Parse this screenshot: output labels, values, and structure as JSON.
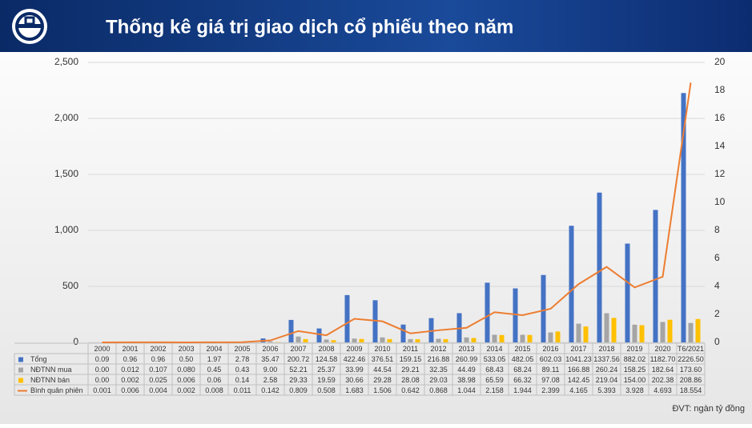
{
  "header": {
    "title": "Thống kê giá trị giao dịch cổ phiếu theo năm"
  },
  "chart_data": {
    "type": "bar-line-table",
    "categories": [
      "2000",
      "2001",
      "2002",
      "2003",
      "2004",
      "2005",
      "2006",
      "2007",
      "2008",
      "2009",
      "2010",
      "2011",
      "2012",
      "2013",
      "2014",
      "2015",
      "2016",
      "2017",
      "2018",
      "2019",
      "2020",
      "T6/2021"
    ],
    "series": [
      {
        "name": "Tổng",
        "color": "#4472c4",
        "kind": "bar",
        "values": [
          0.09,
          0.96,
          0.96,
          0.5,
          1.97,
          2.78,
          35.47,
          200.72,
          124.58,
          422.46,
          376.51,
          159.15,
          216.88,
          260.99,
          533.05,
          482.05,
          602.03,
          1041.23,
          1337.56,
          882.02,
          1182.7,
          2226.5
        ],
        "value_labels": [
          "0.09",
          "0.96",
          "0.96",
          "0.50",
          "1.97",
          "2.78",
          "35.47",
          "200.72",
          "124.58",
          "422.46",
          "376.51",
          "159.15",
          "216.88",
          "260.99",
          "533.05",
          "482.05",
          "602.03",
          "1041.23",
          "1337.56",
          "882.02",
          "1182.70",
          "2226.50"
        ]
      },
      {
        "name": "NĐTNN mua",
        "color": "#a5a5a5",
        "kind": "bar",
        "values": [
          0,
          0.012,
          0.107,
          0.08,
          0.45,
          0.43,
          9,
          52.21,
          25.37,
          33.99,
          44.54,
          29.21,
          32.35,
          44.49,
          68.43,
          68.24,
          89.11,
          166.88,
          260.24,
          158.25,
          182.64,
          173.6
        ],
        "value_labels": [
          "0.00",
          "0.012",
          "0.107",
          "0.080",
          "0.45",
          "0.43",
          "9.00",
          "52.21",
          "25.37",
          "33.99",
          "44.54",
          "29.21",
          "32.35",
          "44.49",
          "68.43",
          "68.24",
          "89.11",
          "166.88",
          "260.24",
          "158.25",
          "182.64",
          "173.60"
        ]
      },
      {
        "name": "NĐTNN bán",
        "color": "#ffc000",
        "kind": "bar",
        "values": [
          0,
          0.002,
          0.025,
          0.006,
          0.06,
          0.14,
          2.58,
          29.33,
          19.59,
          30.66,
          29.28,
          28.08,
          29.03,
          38.98,
          65.59,
          66.32,
          97.08,
          142.45,
          219.04,
          154,
          202.38,
          208.86
        ],
        "value_labels": [
          "0.00",
          "0.002",
          "0.025",
          "0.006",
          "0.06",
          "0.14",
          "2.58",
          "29.33",
          "19.59",
          "30.66",
          "29.28",
          "28.08",
          "29.03",
          "38.98",
          "65.59",
          "66.32",
          "97.08",
          "142.45",
          "219.04",
          "154.00",
          "202.38",
          "208.86"
        ]
      },
      {
        "name": "Bình quân phiên",
        "color": "#ed7d31",
        "kind": "line",
        "axis": "y2",
        "values": [
          0.001,
          0.006,
          0.004,
          0.002,
          0.008,
          0.011,
          0.142,
          0.809,
          0.508,
          1.683,
          1.506,
          0.642,
          0.868,
          1.044,
          2.158,
          1.944,
          2.399,
          4.165,
          5.393,
          3.928,
          4.693,
          18.554
        ],
        "value_labels": [
          "0.001",
          "0.006",
          "0.004",
          "0.002",
          "0.008",
          "0.011",
          "0.142",
          "0.809",
          "0.508",
          "1.683",
          "1.506",
          "0.642",
          "0.868",
          "1.044",
          "2.158",
          "1.944",
          "2.399",
          "4.165",
          "5.393",
          "3.928",
          "4.693",
          "18.554"
        ]
      }
    ],
    "ylim": [
      0,
      2500
    ],
    "yticks": [
      0,
      500,
      {
        "value": 1000,
        "label": "1,000"
      },
      {
        "value": 1500,
        "label": "1,500"
      },
      {
        "value": 2000,
        "label": "2,000"
      },
      {
        "value": 2500,
        "label": "2,500"
      }
    ],
    "y2lim": [
      0,
      20
    ],
    "y2ticks": [
      0,
      2,
      4,
      6,
      8,
      10,
      12,
      14,
      16,
      18,
      20
    ],
    "grid": true,
    "note": "ĐVT: ngàn tỷ đồng"
  }
}
